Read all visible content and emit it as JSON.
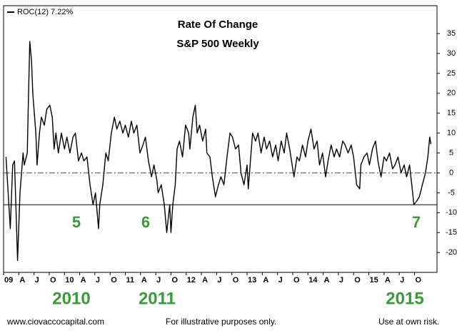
{
  "chart_data": {
    "type": "line",
    "title": "Rate Of Change",
    "subtitle": "S&P 500 Weekly",
    "x": [
      2009.04,
      2009.11,
      2009.15,
      2009.18,
      2009.23,
      2009.27,
      2009.32,
      2009.34,
      2009.39,
      2009.41,
      2009.43,
      2009.46,
      2009.48,
      2009.53,
      2009.55,
      2009.59,
      2009.62,
      2009.67,
      2009.71,
      2009.76,
      2009.8,
      2009.83,
      2009.86,
      2009.9,
      2009.95,
      2010.0,
      2010.04,
      2010.09,
      2010.14,
      2010.18,
      2010.23,
      2010.28,
      2010.32,
      2010.37,
      2010.42,
      2010.47,
      2010.51,
      2010.56,
      2010.58,
      2010.63,
      2010.68,
      2010.72,
      2010.77,
      2010.82,
      2010.86,
      2010.91,
      2010.96,
      2011.0,
      2011.05,
      2011.1,
      2011.14,
      2011.19,
      2011.24,
      2011.29,
      2011.33,
      2011.38,
      2011.43,
      2011.47,
      2011.52,
      2011.54,
      2011.59,
      2011.64,
      2011.68,
      2011.73,
      2011.75,
      2011.78,
      2011.82,
      2011.85,
      2011.89,
      2011.94,
      2011.99,
      2012.04,
      2012.06,
      2012.11,
      2012.15,
      2012.18,
      2012.22,
      2012.27,
      2012.32,
      2012.34,
      2012.39,
      2012.43,
      2012.48,
      2012.53,
      2012.57,
      2012.62,
      2012.67,
      2012.72,
      2012.76,
      2012.81,
      2012.86,
      2012.9,
      2012.95,
      2013.0,
      2013.02,
      2013.07,
      2013.09,
      2013.14,
      2013.18,
      2013.23,
      2013.28,
      2013.32,
      2013.37,
      2013.42,
      2013.47,
      2013.51,
      2013.56,
      2013.61,
      2013.65,
      2013.7,
      2013.72,
      2013.77,
      2013.82,
      2013.86,
      2013.91,
      2013.96,
      2014.0,
      2014.05,
      2014.1,
      2014.15,
      2014.19,
      2014.24,
      2014.29,
      2014.33,
      2014.38,
      2014.43,
      2014.47,
      2014.52,
      2014.57,
      2014.61,
      2014.66,
      2014.71,
      2014.75,
      2014.8,
      2014.85,
      2014.87,
      2014.92,
      2014.97,
      2015.01,
      2015.06,
      2015.11,
      2015.15,
      2015.2,
      2015.25,
      2015.29,
      2015.34,
      2015.39,
      2015.43,
      2015.48,
      2015.53,
      2015.58,
      2015.62,
      2015.67,
      2015.72,
      2015.74,
      2015.79,
      2015.83,
      2015.88,
      2015.93,
      2015.97,
      2016.0,
      2016.02
    ],
    "series": [
      {
        "name": "ROC(12) 7.22%",
        "color": "#000000",
        "values": [
          4,
          -14,
          2,
          3,
          -22,
          -5,
          5,
          2,
          5,
          20,
          33,
          28,
          20,
          10,
          2,
          10,
          14,
          12,
          16,
          17,
          14,
          6,
          10,
          5,
          10,
          6,
          9,
          5,
          9,
          10,
          3,
          5,
          3,
          4,
          -3,
          -8,
          -5,
          -14,
          -8,
          -3,
          5,
          3,
          10,
          14,
          11,
          13,
          10,
          12,
          9,
          13,
          10,
          12,
          5,
          7,
          9,
          3,
          -1,
          2,
          -2,
          -5,
          -3,
          -8,
          -15,
          -8,
          -15,
          -8,
          -3,
          6,
          8,
          4,
          12,
          10,
          6,
          14,
          17,
          10,
          12,
          8,
          11,
          5,
          4,
          -1,
          -6,
          -3,
          -1,
          -3,
          4,
          10,
          9,
          6,
          7,
          0,
          -3,
          2,
          -4,
          6,
          10,
          8,
          10,
          5,
          9,
          6,
          8,
          4,
          7,
          3,
          8,
          5,
          10,
          6,
          4,
          -1,
          4,
          3,
          7,
          4,
          8,
          11,
          6,
          8,
          2,
          5,
          -1,
          3,
          7,
          4,
          6,
          4,
          8,
          7,
          5,
          7,
          4,
          -3,
          -4,
          2,
          4,
          5,
          2,
          6,
          8,
          3,
          -1,
          4,
          3,
          5,
          1,
          2,
          4,
          0,
          2,
          -1,
          2,
          -5,
          -8,
          -7,
          -6,
          -3,
          0,
          4,
          9,
          7.22
        ]
      }
    ],
    "xlim": [
      2009,
      2016.12
    ],
    "ylim": [
      -25,
      42
    ],
    "xticks": [
      {
        "value": 2009,
        "label": "09"
      },
      {
        "value": 2009.25,
        "label": "A"
      },
      {
        "value": 2009.5,
        "label": "J"
      },
      {
        "value": 2009.75,
        "label": "O"
      },
      {
        "value": 2010,
        "label": "10"
      },
      {
        "value": 2010.25,
        "label": "A"
      },
      {
        "value": 2010.5,
        "label": "J"
      },
      {
        "value": 2010.75,
        "label": "O"
      },
      {
        "value": 2011,
        "label": "11"
      },
      {
        "value": 2011.25,
        "label": "A"
      },
      {
        "value": 2011.5,
        "label": "J"
      },
      {
        "value": 2011.75,
        "label": "O"
      },
      {
        "value": 2012,
        "label": "12"
      },
      {
        "value": 2012.25,
        "label": "A"
      },
      {
        "value": 2012.5,
        "label": "J"
      },
      {
        "value": 2012.75,
        "label": "O"
      },
      {
        "value": 2013,
        "label": "13"
      },
      {
        "value": 2013.25,
        "label": "A"
      },
      {
        "value": 2013.5,
        "label": "J"
      },
      {
        "value": 2013.75,
        "label": "O"
      },
      {
        "value": 2014,
        "label": "14"
      },
      {
        "value": 2014.25,
        "label": "A"
      },
      {
        "value": 2014.5,
        "label": "J"
      },
      {
        "value": 2014.75,
        "label": "O"
      },
      {
        "value": 2015,
        "label": "15"
      },
      {
        "value": 2015.25,
        "label": "A"
      },
      {
        "value": 2015.5,
        "label": "J"
      },
      {
        "value": 2015.75,
        "label": "O"
      }
    ],
    "yticks": [
      -20,
      -15,
      -10,
      -5,
      0,
      5,
      10,
      15,
      20,
      25,
      30,
      35
    ],
    "hlines": [
      {
        "value": 0,
        "style": "dashdot"
      },
      {
        "value": -8,
        "style": "solid"
      }
    ],
    "annotations": [
      "5",
      "6",
      "7"
    ],
    "year_labels": [
      "2010",
      "2011",
      "2015"
    ],
    "footer": [
      "www.ciovaccocapital.com",
      "For illustrative purposes only.",
      "Use at own risk."
    ]
  }
}
